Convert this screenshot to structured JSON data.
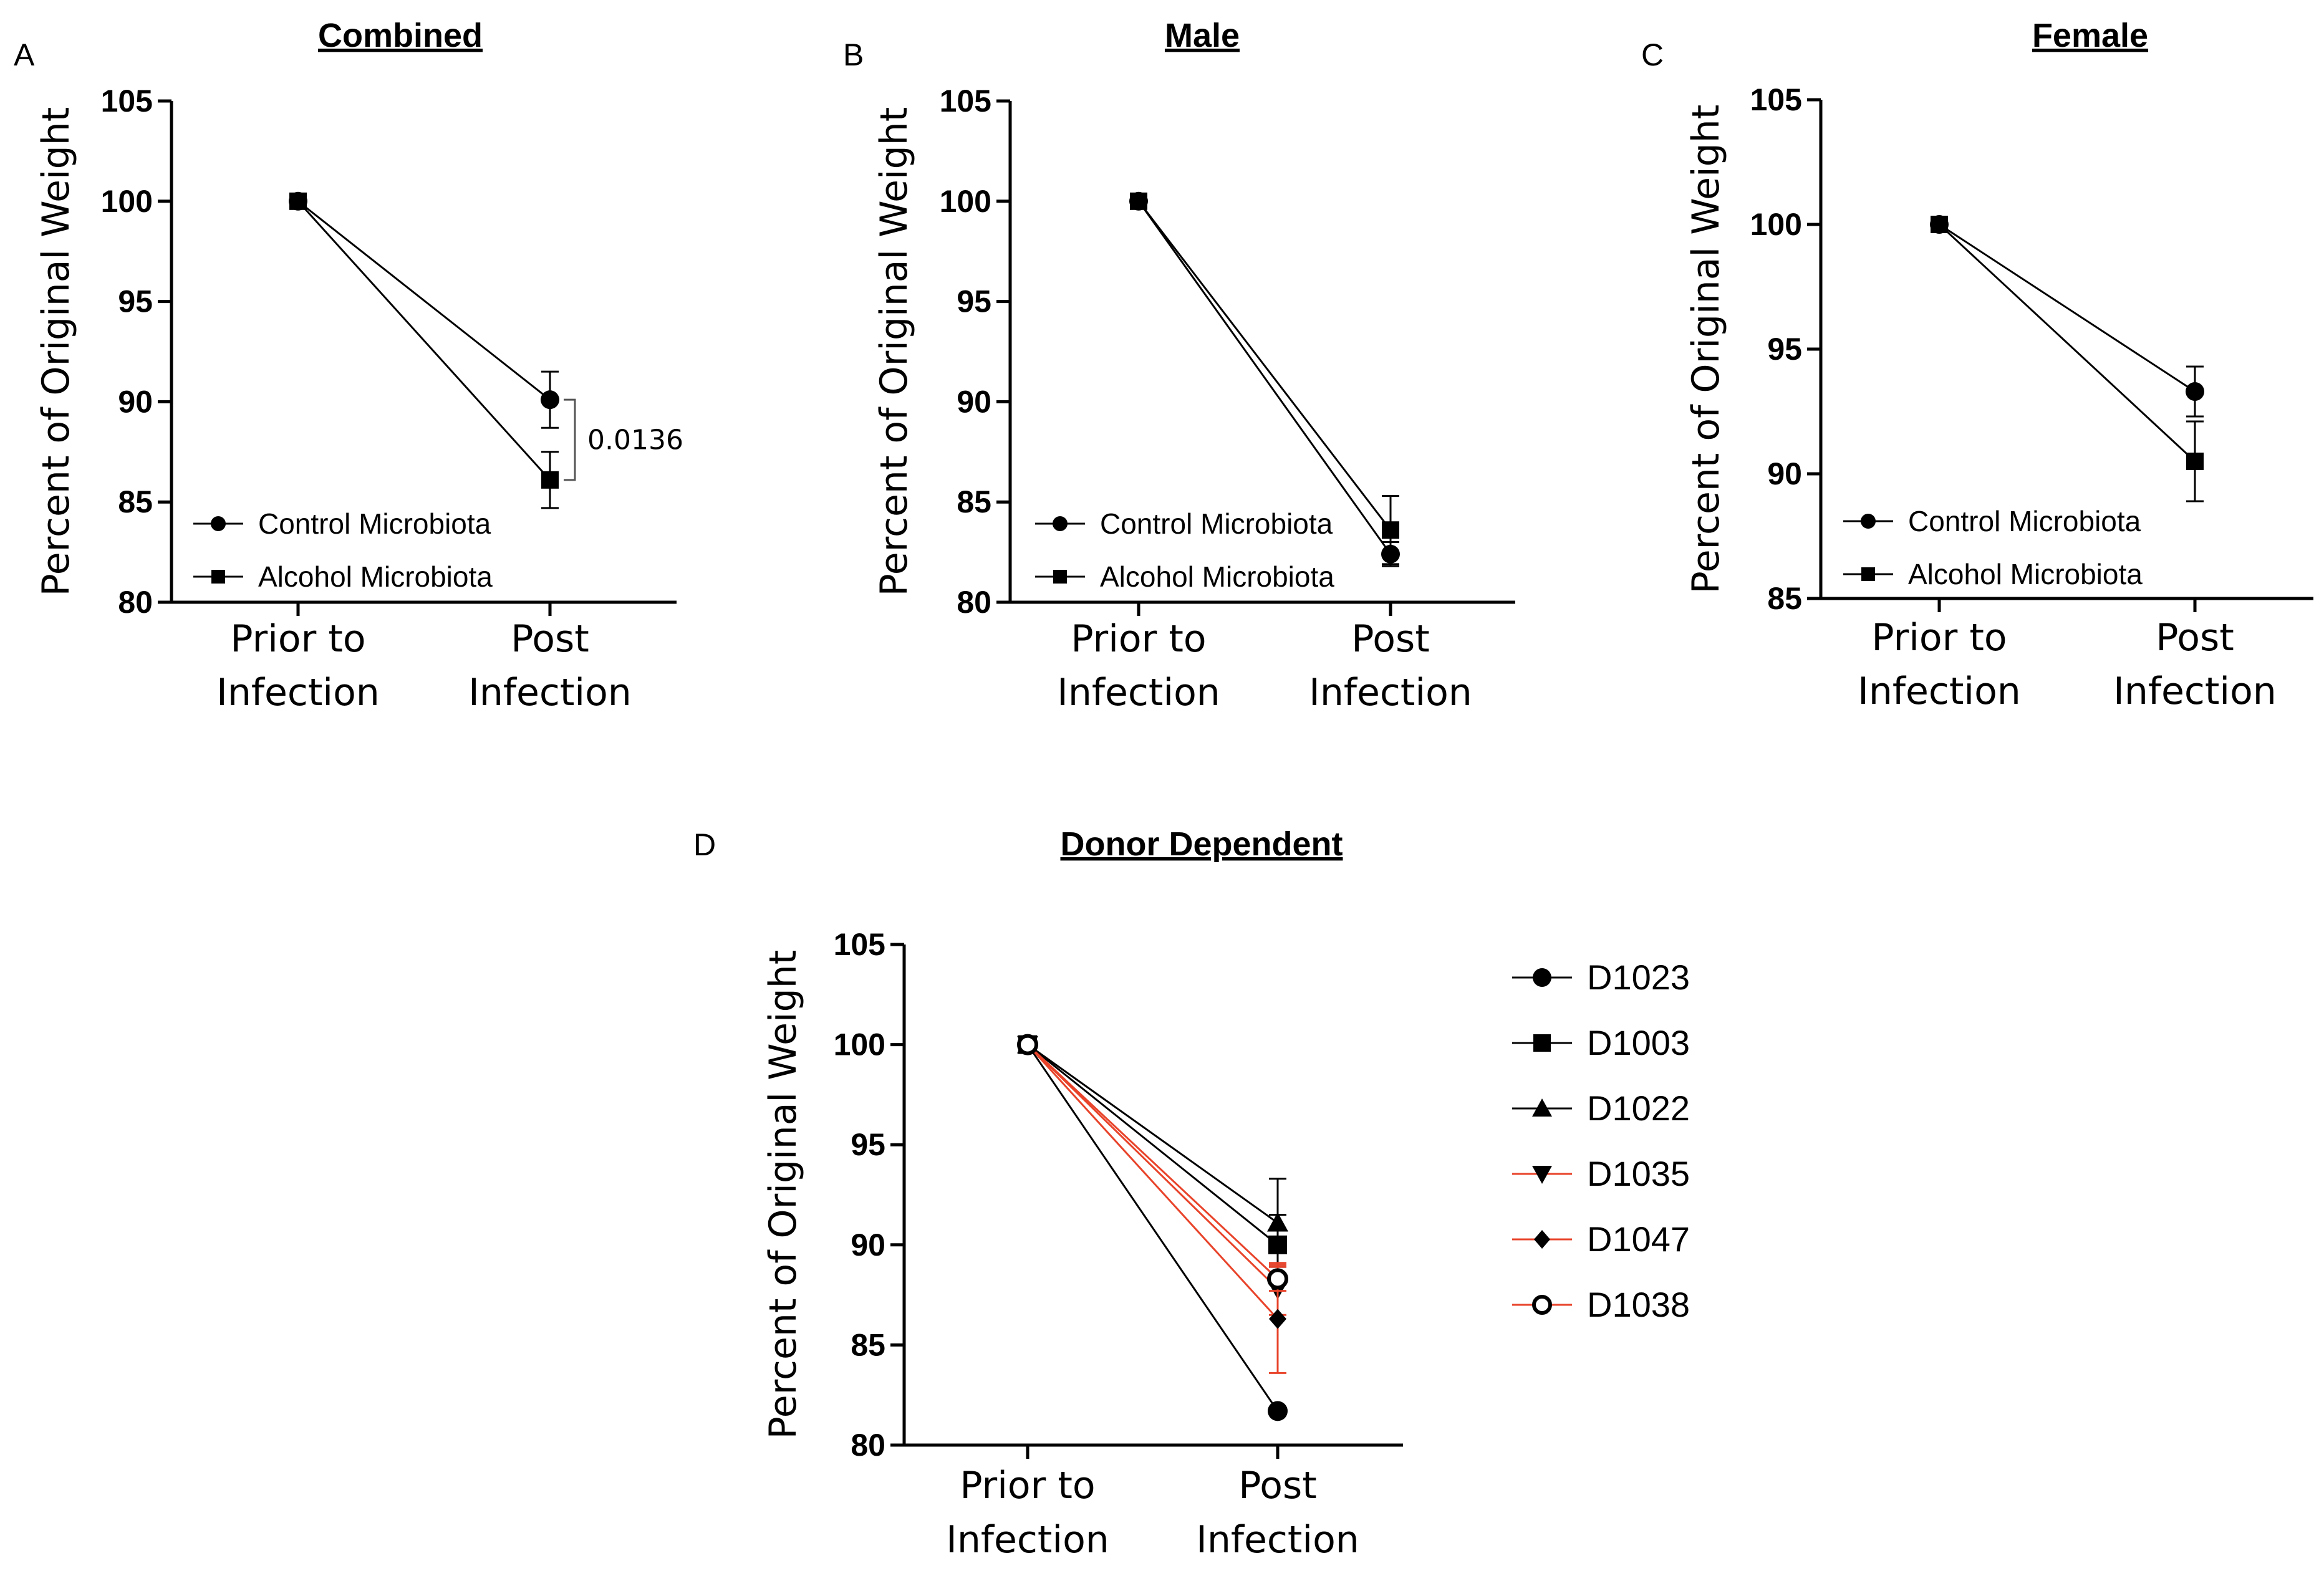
{
  "chart_data": [
    {
      "type": "line",
      "panel": "A",
      "title": "Combined",
      "xlabel": "",
      "ylabel": "Percent of Original Weight",
      "categories": [
        "Prior to\nInfection",
        "Post\nInfection"
      ],
      "ylim": [
        80,
        105
      ],
      "yticks": [
        80,
        85,
        90,
        95,
        100,
        105
      ],
      "series": [
        {
          "name": "Control Microbiota",
          "marker": "circle",
          "color": "#000000",
          "values": [
            100,
            90.1
          ],
          "error": [
            0,
            1.4
          ]
        },
        {
          "name": "Alcohol Microbiota",
          "marker": "square",
          "color": "#000000",
          "values": [
            100,
            86.1
          ],
          "error": [
            0,
            1.4
          ]
        }
      ],
      "annotation": "0.0136",
      "legend": "bottom-left"
    },
    {
      "type": "line",
      "panel": "B",
      "title": "Male",
      "xlabel": "",
      "ylabel": "Percent of Original Weight",
      "categories": [
        "Prior to\nInfection",
        "Post\nInfection"
      ],
      "ylim": [
        80,
        105
      ],
      "yticks": [
        80,
        85,
        90,
        95,
        100,
        105
      ],
      "series": [
        {
          "name": "Control Microbiota",
          "marker": "circle",
          "color": "#000000",
          "values": [
            100,
            82.4
          ],
          "error": [
            0,
            0.6
          ]
        },
        {
          "name": "Alcohol Microbiota",
          "marker": "square",
          "color": "#000000",
          "values": [
            100,
            83.6
          ],
          "error": [
            0,
            1.7
          ]
        }
      ],
      "legend": "bottom-left"
    },
    {
      "type": "line",
      "panel": "C",
      "title": "Female",
      "xlabel": "",
      "ylabel": "Percent of Original Weight",
      "categories": [
        "Prior to\nInfection",
        "Post\nInfection"
      ],
      "ylim": [
        85,
        105
      ],
      "yticks": [
        85,
        90,
        95,
        100,
        105
      ],
      "series": [
        {
          "name": "Control Microbiota",
          "marker": "circle",
          "color": "#000000",
          "values": [
            100,
            93.3
          ],
          "error": [
            0,
            1.0
          ]
        },
        {
          "name": "Alcohol Microbiota",
          "marker": "square",
          "color": "#000000",
          "values": [
            100,
            90.5
          ],
          "error": [
            0,
            1.6
          ]
        }
      ],
      "legend": "bottom-left"
    },
    {
      "type": "line",
      "panel": "D",
      "title": "Donor Dependent",
      "xlabel": "",
      "ylabel": "Percent of Original Weight",
      "categories": [
        "Prior to\nInfection",
        "Post\nInfection"
      ],
      "ylim": [
        80,
        105
      ],
      "yticks": [
        80,
        85,
        90,
        95,
        100,
        105
      ],
      "series": [
        {
          "name": "D1023",
          "marker": "circle",
          "color": "#000000",
          "values": [
            100,
            81.7
          ],
          "error": [
            0,
            0
          ]
        },
        {
          "name": "D1003",
          "marker": "square",
          "color": "#000000",
          "values": [
            100,
            90.0
          ],
          "error": [
            0,
            1.5
          ]
        },
        {
          "name": "D1022",
          "marker": "triangle-up",
          "color": "#000000",
          "values": [
            100,
            91.1
          ],
          "error": [
            0,
            2.2
          ]
        },
        {
          "name": "D1035",
          "marker": "triangle-down",
          "color": "#e8432a",
          "values": [
            100,
            87.8
          ],
          "error": [
            0,
            1.3
          ]
        },
        {
          "name": "D1047",
          "marker": "diamond",
          "color": "#e8432a",
          "values": [
            100,
            86.3
          ],
          "error": [
            0,
            2.7
          ]
        },
        {
          "name": "D1038",
          "marker": "open-circle",
          "color": "#e8432a",
          "values": [
            100,
            88.3
          ],
          "error": [
            0,
            0.6
          ]
        }
      ],
      "legend": "right"
    }
  ]
}
